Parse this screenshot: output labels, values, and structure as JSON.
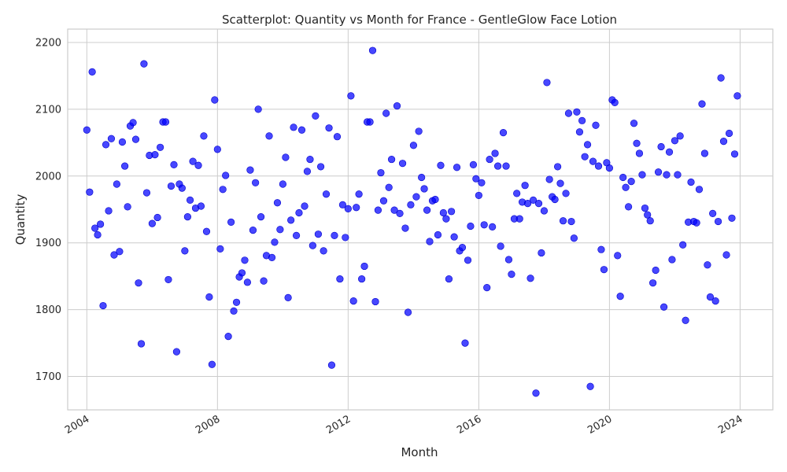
{
  "chart_data": {
    "type": "scatter",
    "title": "Scatterplot: Quantity vs Month for France - GentleGlow Face Lotion",
    "xlabel": "Month",
    "ylabel": "Quantity",
    "x_type": "date",
    "xlim": [
      "2003-06-01",
      "2025-01-01"
    ],
    "ylim": [
      1650,
      2220
    ],
    "x_ticks": [
      "2004-01-01",
      "2008-01-01",
      "2012-01-01",
      "2016-01-01",
      "2020-01-01",
      "2024-01-01"
    ],
    "x_tick_labels": [
      "2004",
      "2008",
      "2012",
      "2016",
      "2020",
      "2024"
    ],
    "y_ticks": [
      1700,
      1800,
      1900,
      2000,
      2100,
      2200
    ],
    "y_tick_labels": [
      "1700",
      "1800",
      "1900",
      "2000",
      "2100",
      "2200"
    ],
    "grid": true,
    "marker_color": "#0000ff",
    "points": [
      [
        "2004-01-01",
        2069
      ],
      [
        "2004-02-01",
        1976
      ],
      [
        "2004-03-01",
        2156
      ],
      [
        "2004-04-01",
        1922
      ],
      [
        "2004-05-01",
        1912
      ],
      [
        "2004-06-01",
        1928
      ],
      [
        "2004-07-01",
        1806
      ],
      [
        "2004-08-01",
        2047
      ],
      [
        "2004-09-01",
        1948
      ],
      [
        "2004-10-01",
        2056
      ],
      [
        "2004-11-01",
        1882
      ],
      [
        "2004-12-01",
        1988
      ],
      [
        "2005-01-01",
        1887
      ],
      [
        "2005-02-01",
        2051
      ],
      [
        "2005-03-01",
        2015
      ],
      [
        "2005-04-01",
        1954
      ],
      [
        "2005-05-01",
        2075
      ],
      [
        "2005-06-01",
        2080
      ],
      [
        "2005-07-01",
        2055
      ],
      [
        "2005-08-01",
        1840
      ],
      [
        "2005-09-01",
        1749
      ],
      [
        "2005-10-01",
        2168
      ],
      [
        "2005-11-01",
        1975
      ],
      [
        "2005-12-01",
        2031
      ],
      [
        "2006-01-01",
        1929
      ],
      [
        "2006-02-01",
        2032
      ],
      [
        "2006-03-01",
        1938
      ],
      [
        "2006-04-01",
        2043
      ],
      [
        "2006-05-01",
        2081
      ],
      [
        "2006-06-01",
        2081
      ],
      [
        "2006-07-01",
        1845
      ],
      [
        "2006-08-01",
        1985
      ],
      [
        "2006-09-01",
        2017
      ],
      [
        "2006-10-01",
        1737
      ],
      [
        "2006-11-01",
        1988
      ],
      [
        "2006-12-01",
        1982
      ],
      [
        "2007-01-01",
        1888
      ],
      [
        "2007-02-01",
        1939
      ],
      [
        "2007-03-01",
        1964
      ],
      [
        "2007-04-01",
        2022
      ],
      [
        "2007-05-01",
        1952
      ],
      [
        "2007-06-01",
        2016
      ],
      [
        "2007-07-01",
        1955
      ],
      [
        "2007-08-01",
        2060
      ],
      [
        "2007-09-01",
        1917
      ],
      [
        "2007-10-01",
        1819
      ],
      [
        "2007-11-01",
        1718
      ],
      [
        "2007-12-01",
        2114
      ],
      [
        "2008-01-01",
        2040
      ],
      [
        "2008-02-01",
        1891
      ],
      [
        "2008-03-01",
        1980
      ],
      [
        "2008-04-01",
        2001
      ],
      [
        "2008-05-01",
        1760
      ],
      [
        "2008-06-01",
        1931
      ],
      [
        "2008-07-01",
        1798
      ],
      [
        "2008-08-01",
        1811
      ],
      [
        "2008-09-01",
        1849
      ],
      [
        "2008-10-01",
        1855
      ],
      [
        "2008-11-01",
        1874
      ],
      [
        "2008-12-01",
        1841
      ],
      [
        "2009-01-01",
        2009
      ],
      [
        "2009-02-01",
        1919
      ],
      [
        "2009-03-01",
        1990
      ],
      [
        "2009-04-01",
        2100
      ],
      [
        "2009-05-01",
        1939
      ],
      [
        "2009-06-01",
        1843
      ],
      [
        "2009-07-01",
        1881
      ],
      [
        "2009-08-01",
        2060
      ],
      [
        "2009-09-01",
        1878
      ],
      [
        "2009-10-01",
        1901
      ],
      [
        "2009-11-01",
        1960
      ],
      [
        "2009-12-01",
        1920
      ],
      [
        "2010-01-01",
        1988
      ],
      [
        "2010-02-01",
        2028
      ],
      [
        "2010-03-01",
        1818
      ],
      [
        "2010-04-01",
        1934
      ],
      [
        "2010-05-01",
        2073
      ],
      [
        "2010-06-01",
        1911
      ],
      [
        "2010-07-01",
        1945
      ],
      [
        "2010-08-01",
        2069
      ],
      [
        "2010-09-01",
        1955
      ],
      [
        "2010-10-01",
        2007
      ],
      [
        "2010-11-01",
        2025
      ],
      [
        "2010-12-01",
        1896
      ],
      [
        "2011-01-01",
        2090
      ],
      [
        "2011-02-01",
        1913
      ],
      [
        "2011-03-01",
        2014
      ],
      [
        "2011-04-01",
        1888
      ],
      [
        "2011-05-01",
        1973
      ],
      [
        "2011-06-01",
        2072
      ],
      [
        "2011-07-01",
        1717
      ],
      [
        "2011-08-01",
        1911
      ],
      [
        "2011-09-01",
        2059
      ],
      [
        "2011-10-01",
        1846
      ],
      [
        "2011-11-01",
        1957
      ],
      [
        "2011-12-01",
        1908
      ],
      [
        "2012-01-01",
        1951
      ],
      [
        "2012-02-01",
        2120
      ],
      [
        "2012-03-01",
        1813
      ],
      [
        "2012-04-01",
        1953
      ],
      [
        "2012-05-01",
        1973
      ],
      [
        "2012-06-01",
        1846
      ],
      [
        "2012-07-01",
        1865
      ],
      [
        "2012-08-01",
        2081
      ],
      [
        "2012-09-01",
        2081
      ],
      [
        "2012-10-01",
        2188
      ],
      [
        "2012-11-01",
        1812
      ],
      [
        "2012-12-01",
        1949
      ],
      [
        "2013-01-01",
        2005
      ],
      [
        "2013-02-01",
        1963
      ],
      [
        "2013-03-01",
        2094
      ],
      [
        "2013-04-01",
        1983
      ],
      [
        "2013-05-01",
        2025
      ],
      [
        "2013-06-01",
        1949
      ],
      [
        "2013-07-01",
        2105
      ],
      [
        "2013-08-01",
        1944
      ],
      [
        "2013-09-01",
        2019
      ],
      [
        "2013-10-01",
        1922
      ],
      [
        "2013-11-01",
        1796
      ],
      [
        "2013-12-01",
        1957
      ],
      [
        "2014-01-01",
        2046
      ],
      [
        "2014-02-01",
        1969
      ],
      [
        "2014-03-01",
        2067
      ],
      [
        "2014-04-01",
        1998
      ],
      [
        "2014-05-01",
        1981
      ],
      [
        "2014-06-01",
        1949
      ],
      [
        "2014-07-01",
        1902
      ],
      [
        "2014-08-01",
        1963
      ],
      [
        "2014-09-01",
        1965
      ],
      [
        "2014-10-01",
        1912
      ],
      [
        "2014-11-01",
        2016
      ],
      [
        "2014-12-01",
        1945
      ],
      [
        "2015-01-01",
        1936
      ],
      [
        "2015-02-01",
        1846
      ],
      [
        "2015-03-01",
        1947
      ],
      [
        "2015-04-01",
        1909
      ],
      [
        "2015-05-01",
        2013
      ],
      [
        "2015-06-01",
        1888
      ],
      [
        "2015-07-01",
        1893
      ],
      [
        "2015-08-01",
        1750
      ],
      [
        "2015-09-01",
        1874
      ],
      [
        "2015-10-01",
        1925
      ],
      [
        "2015-11-01",
        2017
      ],
      [
        "2015-12-01",
        1996
      ],
      [
        "2016-01-01",
        1971
      ],
      [
        "2016-02-01",
        1990
      ],
      [
        "2016-03-01",
        1927
      ],
      [
        "2016-04-01",
        1833
      ],
      [
        "2016-05-01",
        2025
      ],
      [
        "2016-06-01",
        1924
      ],
      [
        "2016-07-01",
        2034
      ],
      [
        "2016-08-01",
        2015
      ],
      [
        "2016-09-01",
        1895
      ],
      [
        "2016-10-01",
        2065
      ],
      [
        "2016-11-01",
        2015
      ],
      [
        "2016-12-01",
        1875
      ],
      [
        "2017-01-01",
        1853
      ],
      [
        "2017-02-01",
        1936
      ],
      [
        "2017-03-01",
        1974
      ],
      [
        "2017-04-01",
        1936
      ],
      [
        "2017-05-01",
        1961
      ],
      [
        "2017-06-01",
        1986
      ],
      [
        "2017-07-01",
        1959
      ],
      [
        "2017-08-01",
        1847
      ],
      [
        "2017-09-01",
        1964
      ],
      [
        "2017-10-01",
        1675
      ],
      [
        "2017-11-01",
        1959
      ],
      [
        "2017-12-01",
        1885
      ],
      [
        "2018-01-01",
        1948
      ],
      [
        "2018-02-01",
        2140
      ],
      [
        "2018-03-01",
        1995
      ],
      [
        "2018-04-01",
        1969
      ],
      [
        "2018-05-01",
        1965
      ],
      [
        "2018-06-01",
        2014
      ],
      [
        "2018-07-01",
        1989
      ],
      [
        "2018-08-01",
        1933
      ],
      [
        "2018-09-01",
        1974
      ],
      [
        "2018-10-01",
        2094
      ],
      [
        "2018-11-01",
        1932
      ],
      [
        "2018-12-01",
        1907
      ],
      [
        "2019-01-01",
        2096
      ],
      [
        "2019-02-01",
        2066
      ],
      [
        "2019-03-01",
        2083
      ],
      [
        "2019-04-01",
        2029
      ],
      [
        "2019-05-01",
        2047
      ],
      [
        "2019-06-01",
        1685
      ],
      [
        "2019-07-01",
        2022
      ],
      [
        "2019-08-01",
        2076
      ],
      [
        "2019-09-01",
        2015
      ],
      [
        "2019-10-01",
        1890
      ],
      [
        "2019-11-01",
        1860
      ],
      [
        "2019-12-01",
        2020
      ],
      [
        "2020-01-01",
        2012
      ],
      [
        "2020-02-01",
        2114
      ],
      [
        "2020-03-01",
        2110
      ],
      [
        "2020-04-01",
        1881
      ],
      [
        "2020-05-01",
        1820
      ],
      [
        "2020-06-01",
        1998
      ],
      [
        "2020-07-01",
        1983
      ],
      [
        "2020-08-01",
        1954
      ],
      [
        "2020-09-01",
        1992
      ],
      [
        "2020-10-01",
        2079
      ],
      [
        "2020-11-01",
        2049
      ],
      [
        "2020-12-01",
        2034
      ],
      [
        "2021-01-01",
        2002
      ],
      [
        "2021-02-01",
        1952
      ],
      [
        "2021-03-01",
        1942
      ],
      [
        "2021-04-01",
        1933
      ],
      [
        "2021-05-01",
        1840
      ],
      [
        "2021-06-01",
        1859
      ],
      [
        "2021-07-01",
        2006
      ],
      [
        "2021-08-01",
        2044
      ],
      [
        "2021-09-01",
        1804
      ],
      [
        "2021-10-01",
        2002
      ],
      [
        "2021-11-01",
        2036
      ],
      [
        "2021-12-01",
        1875
      ],
      [
        "2022-01-01",
        2053
      ],
      [
        "2022-02-01",
        2002
      ],
      [
        "2022-03-01",
        2060
      ],
      [
        "2022-04-01",
        1897
      ],
      [
        "2022-05-01",
        1784
      ],
      [
        "2022-06-01",
        1931
      ],
      [
        "2022-07-01",
        1991
      ],
      [
        "2022-08-01",
        1932
      ],
      [
        "2022-09-01",
        1930
      ],
      [
        "2022-10-01",
        1980
      ],
      [
        "2022-11-01",
        2108
      ],
      [
        "2022-12-01",
        2034
      ],
      [
        "2023-01-01",
        1867
      ],
      [
        "2023-02-01",
        1819
      ],
      [
        "2023-03-01",
        1944
      ],
      [
        "2023-04-01",
        1813
      ],
      [
        "2023-05-01",
        1932
      ],
      [
        "2023-06-01",
        2147
      ],
      [
        "2023-07-01",
        2052
      ],
      [
        "2023-08-01",
        1882
      ],
      [
        "2023-09-01",
        2064
      ],
      [
        "2023-10-01",
        1937
      ],
      [
        "2023-11-01",
        2033
      ],
      [
        "2023-12-01",
        2120
      ]
    ]
  }
}
